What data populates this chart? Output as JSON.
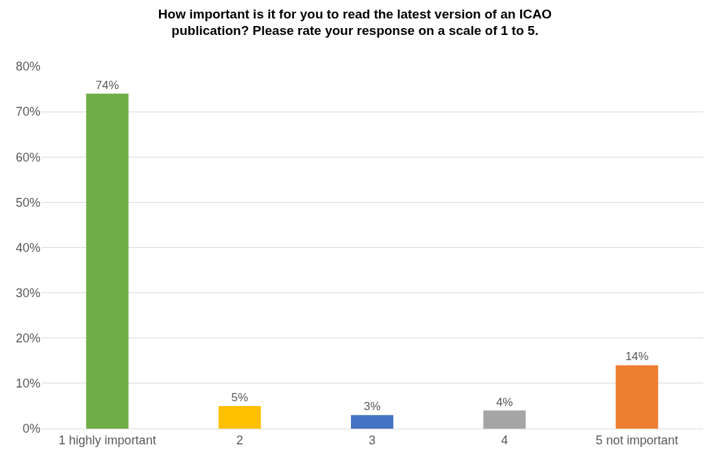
{
  "chart_data": {
    "type": "bar",
    "title": "How important is it for you to read the latest version of an ICAO publication? Please rate your response on a scale of 1 to 5.",
    "categories": [
      "1 highly important",
      "2",
      "3",
      "4",
      "5 not important"
    ],
    "values": [
      74,
      5,
      3,
      4,
      14
    ],
    "colors": [
      "#70ad47",
      "#ffc000",
      "#4472c4",
      "#a5a5a5",
      "#ed7d31"
    ],
    "value_labels": [
      "74%",
      "5%",
      "3%",
      "4%",
      "14%"
    ],
    "ylim": [
      0,
      80
    ],
    "yticks": [
      {
        "value": 0,
        "label": "0%"
      },
      {
        "value": 10,
        "label": "10%"
      },
      {
        "value": 20,
        "label": "20%"
      },
      {
        "value": 30,
        "label": "30%"
      },
      {
        "value": 40,
        "label": "40%"
      },
      {
        "value": 50,
        "label": "50%"
      },
      {
        "value": 60,
        "label": "60%"
      },
      {
        "value": 70,
        "label": "70%"
      },
      {
        "value": 80,
        "label": "80%"
      }
    ],
    "grid": "y"
  }
}
